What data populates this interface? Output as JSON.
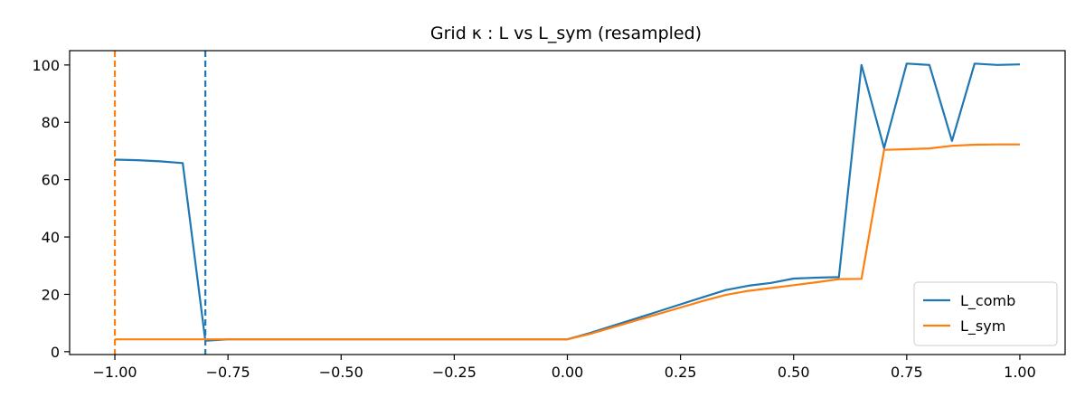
{
  "chart_data": {
    "type": "line",
    "title": "Grid κ : L vs L_sym (resampled)",
    "xlabel": "",
    "ylabel": "",
    "xlim": [
      -1.1,
      1.1
    ],
    "ylim": [
      -1,
      105
    ],
    "xticks": [
      -1.0,
      -0.75,
      -0.5,
      -0.25,
      0.0,
      0.25,
      0.5,
      0.75,
      1.0
    ],
    "xtick_labels": [
      "−1.00",
      "−0.75",
      "−0.50",
      "−0.25",
      "0.00",
      "0.25",
      "0.50",
      "0.75",
      "1.00"
    ],
    "yticks": [
      0,
      20,
      40,
      60,
      80,
      100
    ],
    "ytick_labels": [
      "0",
      "20",
      "40",
      "60",
      "80",
      "100"
    ],
    "grid": false,
    "legend": "lower-right",
    "series": [
      {
        "name": "L_comb",
        "color": "#1f77b4",
        "x": [
          -1.0,
          -0.95,
          -0.9,
          -0.85,
          -0.8,
          -0.75,
          -0.7,
          -0.65,
          -0.6,
          -0.55,
          -0.5,
          -0.45,
          -0.4,
          -0.35,
          -0.3,
          -0.25,
          -0.2,
          -0.15,
          -0.1,
          -0.05,
          0.0,
          0.05,
          0.1,
          0.15,
          0.2,
          0.25,
          0.3,
          0.35,
          0.4,
          0.45,
          0.5,
          0.55,
          0.6,
          0.65,
          0.7,
          0.75,
          0.8,
          0.85,
          0.9,
          0.95,
          1.0
        ],
        "y": [
          67,
          66.8,
          66.4,
          65.8,
          3.8,
          4.3,
          4.3,
          4.3,
          4.3,
          4.3,
          4.3,
          4.3,
          4.3,
          4.3,
          4.3,
          4.3,
          4.3,
          4.3,
          4.3,
          4.3,
          4.3,
          6.5,
          9.0,
          11.5,
          14.0,
          16.5,
          19.0,
          21.5,
          23.0,
          24.0,
          25.5,
          25.8,
          26.0,
          100.0,
          71.0,
          100.5,
          100.0,
          73.5,
          100.5,
          100.0,
          100.2
        ]
      },
      {
        "name": "L_sym",
        "color": "#ff7f0e",
        "x": [
          -1.0,
          -0.95,
          -0.9,
          -0.85,
          -0.8,
          -0.75,
          -0.7,
          -0.65,
          -0.6,
          -0.55,
          -0.5,
          -0.45,
          -0.4,
          -0.35,
          -0.3,
          -0.25,
          -0.2,
          -0.15,
          -0.1,
          -0.05,
          0.0,
          0.05,
          0.1,
          0.15,
          0.2,
          0.25,
          0.3,
          0.35,
          0.4,
          0.45,
          0.5,
          0.55,
          0.6,
          0.65,
          0.7,
          0.75,
          0.8,
          0.85,
          0.9,
          0.95,
          1.0
        ],
        "y": [
          4.3,
          4.3,
          4.3,
          4.3,
          4.3,
          4.3,
          4.3,
          4.3,
          4.3,
          4.3,
          4.3,
          4.3,
          4.3,
          4.3,
          4.3,
          4.3,
          4.3,
          4.3,
          4.3,
          4.3,
          4.3,
          6.2,
          8.5,
          10.8,
          13.1,
          15.4,
          17.7,
          19.8,
          21.2,
          22.2,
          23.2,
          24.2,
          25.3,
          25.4,
          70.4,
          70.6,
          70.9,
          71.8,
          72.2,
          72.3,
          72.3
        ]
      }
    ],
    "vlines": [
      {
        "x": -1.0,
        "color": "#ff7f0e",
        "style": "dashed"
      },
      {
        "x": -0.8,
        "color": "#1f77b4",
        "style": "dashed"
      }
    ]
  }
}
